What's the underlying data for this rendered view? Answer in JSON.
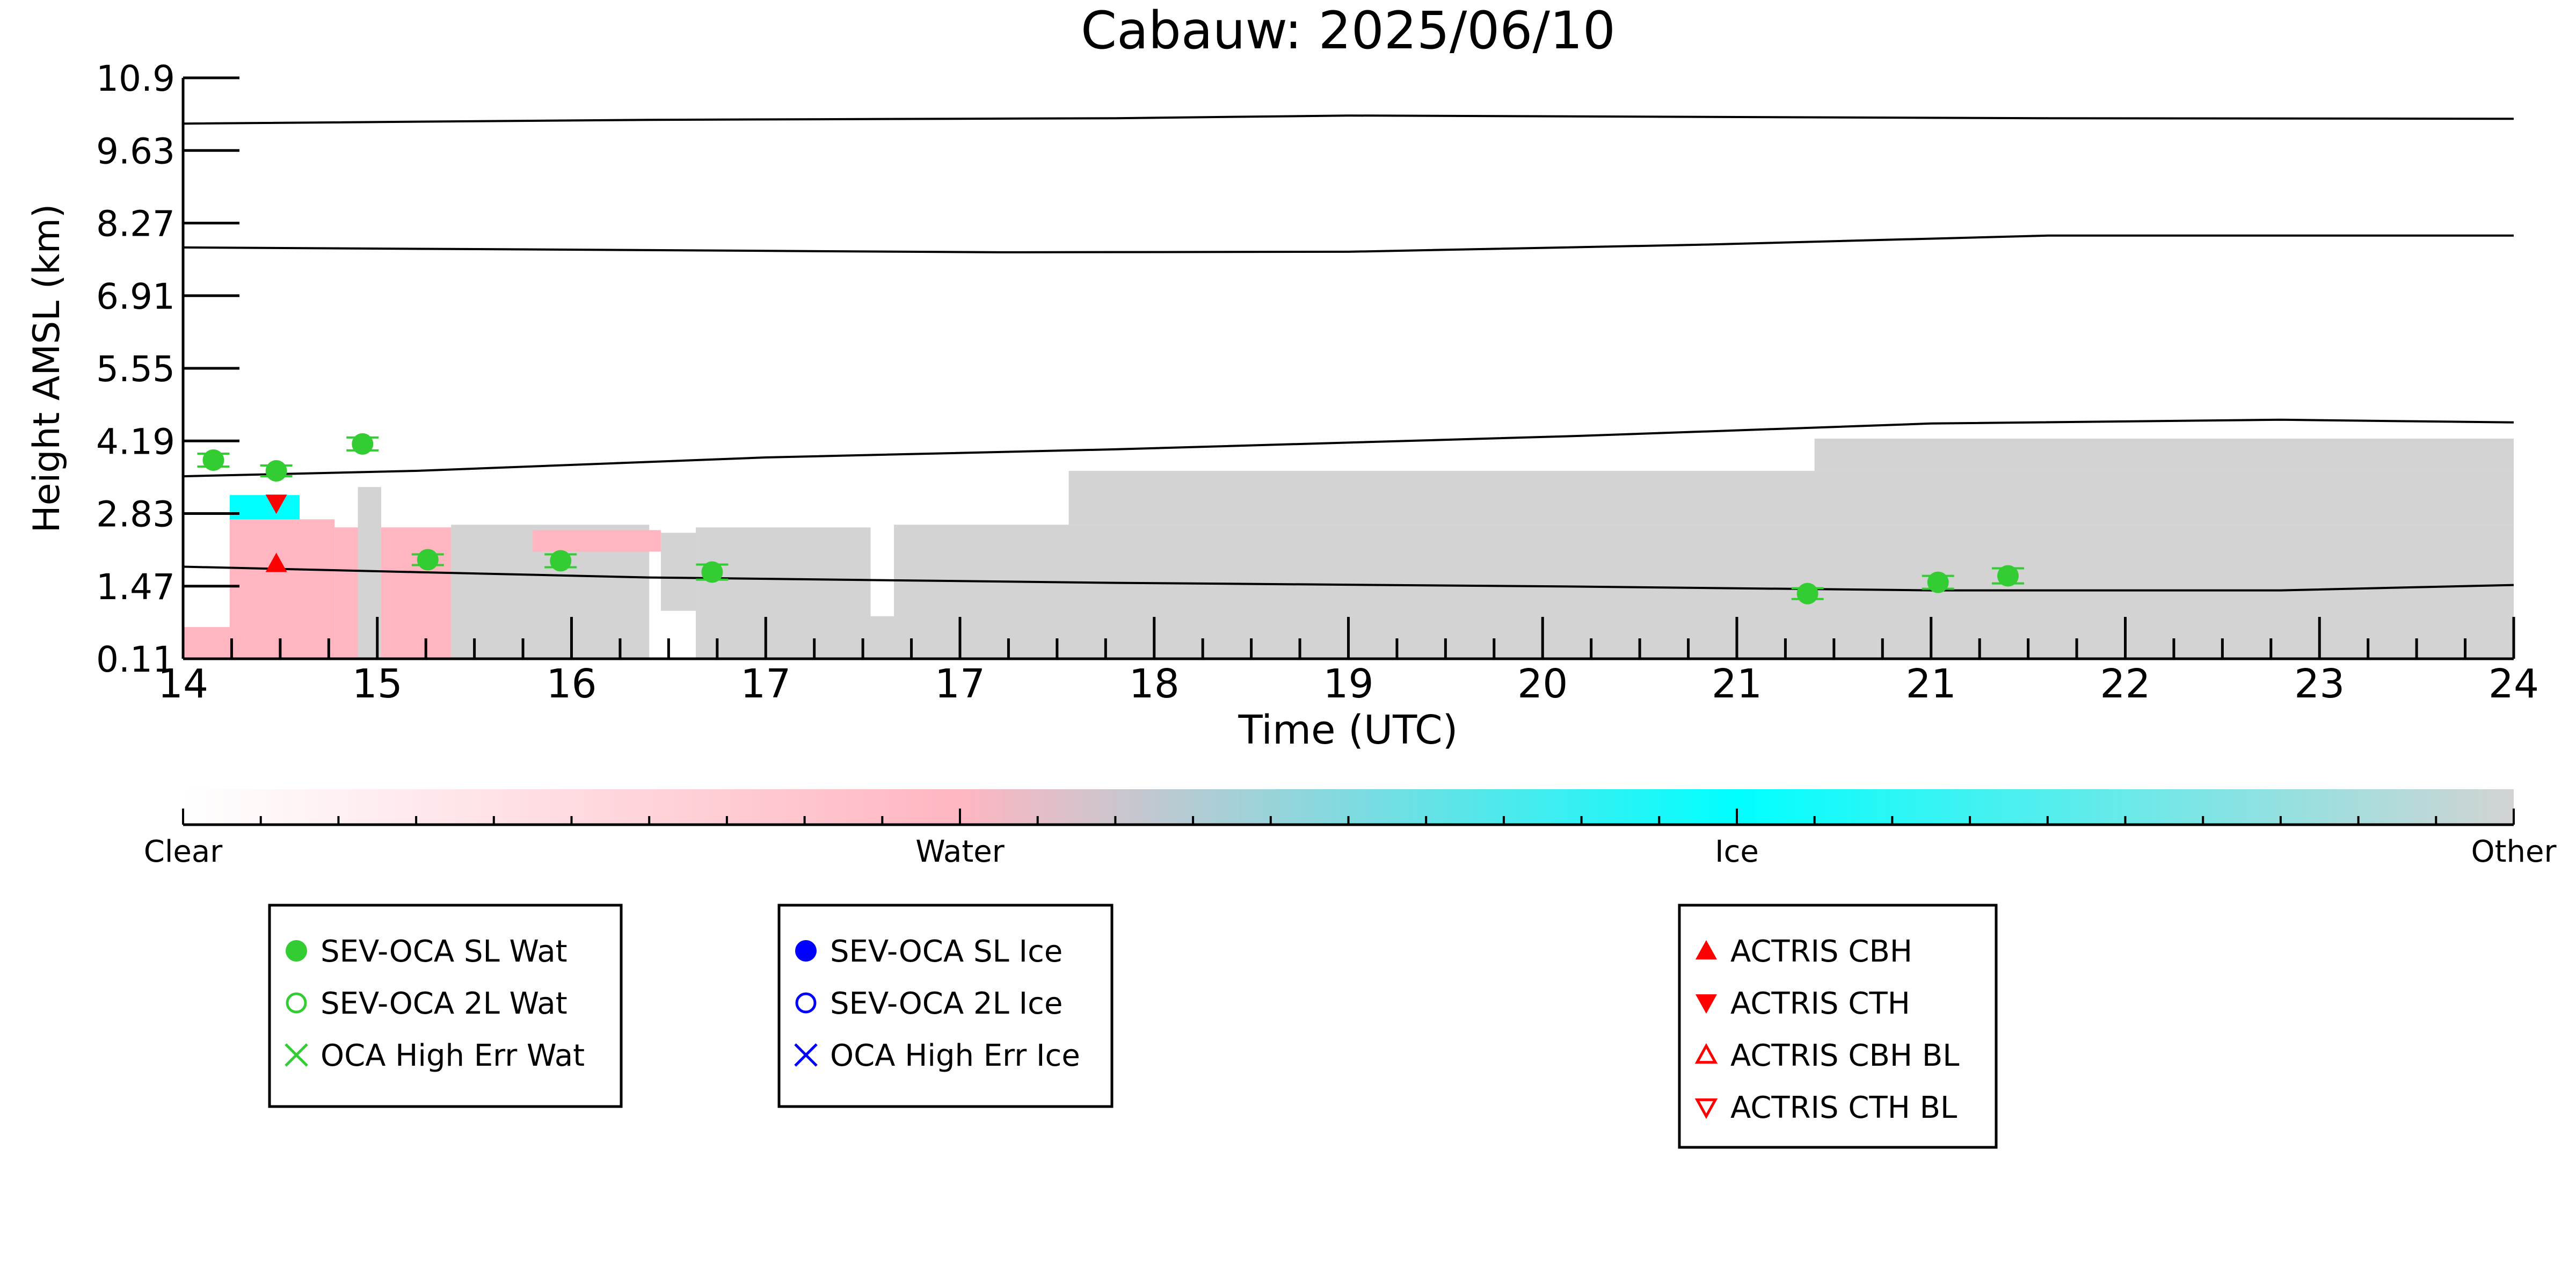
{
  "colors": {
    "clear": "#ffffff",
    "water": "#ffb6c1",
    "ice": "#00ffff",
    "other": "#d3d3d3",
    "oca_water": "#33cc33",
    "oca_ice": "#0000ff",
    "actris": "#ff0000",
    "line": "#000000"
  },
  "chart_data": {
    "type": "scatter",
    "title": "Cabauw: 2025/06/10",
    "xlabel": "Time (UTC)",
    "ylabel": "Height AMSL (km)",
    "x_tick_labels": [
      "14",
      "15",
      "16",
      "17",
      "17",
      "18",
      "19",
      "20",
      "21",
      "21",
      "22",
      "23",
      "24"
    ],
    "y_tick_labels": [
      "0.11",
      "1.47",
      "2.83",
      "4.19",
      "5.55",
      "6.91",
      "8.27",
      "9.63",
      "10.9"
    ],
    "xlim": [
      14,
      24
    ],
    "ylim": [
      0.11,
      10.9
    ],
    "grid": false,
    "background_mask": {
      "description_categories": [
        "Clear",
        "Water",
        "Ice",
        "Other"
      ],
      "segments": [
        {
          "category": "Water",
          "x0": 14.0,
          "x1": 14.2,
          "y0": 0.11,
          "y1": 0.7
        },
        {
          "category": "Water",
          "x0": 14.2,
          "x1": 14.65,
          "y0": 0.11,
          "y1": 2.7
        },
        {
          "category": "Ice",
          "x0": 14.2,
          "x1": 14.5,
          "y0": 2.7,
          "y1": 3.15
        },
        {
          "category": "Water",
          "x0": 14.65,
          "x1": 15.3,
          "y0": 0.11,
          "y1": 2.55
        },
        {
          "category": "Other",
          "x0": 14.75,
          "x1": 14.85,
          "y0": 0.11,
          "y1": 3.3
        },
        {
          "category": "Other",
          "x0": 15.15,
          "x1": 16.0,
          "y0": 0.11,
          "y1": 2.6
        },
        {
          "category": "Water",
          "x0": 15.5,
          "x1": 16.05,
          "y0": 2.1,
          "y1": 2.5
        },
        {
          "category": "Other",
          "x0": 16.05,
          "x1": 16.2,
          "y0": 1.0,
          "y1": 2.45
        },
        {
          "category": "Other",
          "x0": 16.2,
          "x1": 16.95,
          "y0": 0.11,
          "y1": 2.55
        },
        {
          "category": "Other",
          "x0": 16.9,
          "x1": 17.05,
          "y0": 0.11,
          "y1": 0.9
        },
        {
          "category": "Other",
          "x0": 17.05,
          "x1": 24.0,
          "y0": 0.11,
          "y1": 2.6
        },
        {
          "category": "Other",
          "x0": 17.8,
          "x1": 24.0,
          "y0": 2.6,
          "y1": 3.6
        },
        {
          "category": "Other",
          "x0": 21.0,
          "x1": 24.0,
          "y0": 3.6,
          "y1": 4.2
        }
      ]
    },
    "series": [
      {
        "name": "SEV-OCA SL Wat",
        "points": [
          {
            "x": 14.13,
            "y": 3.8,
            "err": 0.12
          },
          {
            "x": 14.4,
            "y": 3.6,
            "err": 0.1
          },
          {
            "x": 14.77,
            "y": 4.1,
            "err": 0.12
          },
          {
            "x": 15.05,
            "y": 1.95,
            "err": 0.1
          },
          {
            "x": 15.62,
            "y": 1.93,
            "err": 0.12
          },
          {
            "x": 16.27,
            "y": 1.72,
            "err": 0.14
          },
          {
            "x": 20.97,
            "y": 1.32,
            "err": 0.1
          },
          {
            "x": 21.53,
            "y": 1.53,
            "err": 0.12
          },
          {
            "x": 21.83,
            "y": 1.65,
            "err": 0.14
          }
        ]
      },
      {
        "name": "SEV-OCA 2L Wat",
        "points": []
      },
      {
        "name": "OCA High Err Wat",
        "points": []
      },
      {
        "name": "SEV-OCA SL Ice",
        "points": []
      },
      {
        "name": "SEV-OCA 2L Ice",
        "points": []
      },
      {
        "name": "OCA High Err Ice",
        "points": []
      },
      {
        "name": "ACTRIS CBH",
        "points": [
          {
            "x": 14.4,
            "y": 1.88
          }
        ]
      },
      {
        "name": "ACTRIS CTH",
        "points": [
          {
            "x": 14.4,
            "y": 3.0
          }
        ]
      },
      {
        "name": "ACTRIS CBH BL",
        "points": []
      },
      {
        "name": "ACTRIS CTH BL",
        "points": []
      }
    ],
    "lines": [
      {
        "points": [
          [
            14.0,
            10.05
          ],
          [
            16.0,
            10.12
          ],
          [
            18.0,
            10.15
          ],
          [
            19.0,
            10.2
          ],
          [
            22.0,
            10.15
          ],
          [
            24.0,
            10.14
          ]
        ]
      },
      {
        "points": [
          [
            14.0,
            7.75
          ],
          [
            16.0,
            7.7
          ],
          [
            17.5,
            7.66
          ],
          [
            19.0,
            7.67
          ],
          [
            20.5,
            7.8
          ],
          [
            22.0,
            7.97
          ],
          [
            24.0,
            7.97
          ]
        ]
      },
      {
        "points": [
          [
            14.0,
            3.5
          ],
          [
            15.0,
            3.6
          ],
          [
            16.5,
            3.85
          ],
          [
            18.0,
            4.0
          ],
          [
            20.0,
            4.25
          ],
          [
            21.5,
            4.48
          ],
          [
            23.0,
            4.55
          ],
          [
            24.0,
            4.5
          ]
        ]
      },
      {
        "points": [
          [
            14.0,
            1.82
          ],
          [
            15.0,
            1.72
          ],
          [
            16.0,
            1.62
          ],
          [
            18.0,
            1.52
          ],
          [
            20.0,
            1.45
          ],
          [
            21.5,
            1.38
          ],
          [
            23.0,
            1.38
          ],
          [
            24.0,
            1.48
          ]
        ]
      }
    ],
    "colorbar": {
      "labels": [
        "Clear",
        "Water",
        "Ice",
        "Other"
      ],
      "colors": [
        "#ffffff",
        "#ffb6c1",
        "#00ffff",
        "#d3d3d3"
      ]
    },
    "legends": [
      {
        "entries": [
          {
            "label": "SEV-OCA SL Wat",
            "marker": "filled-circle",
            "color": "#33cc33"
          },
          {
            "label": "SEV-OCA 2L Wat",
            "marker": "open-circle",
            "color": "#33cc33"
          },
          {
            "label": "OCA High Err Wat",
            "marker": "x",
            "color": "#33cc33"
          }
        ]
      },
      {
        "entries": [
          {
            "label": "SEV-OCA SL Ice",
            "marker": "filled-circle",
            "color": "#0000ff"
          },
          {
            "label": "SEV-OCA 2L Ice",
            "marker": "open-circle",
            "color": "#0000ff"
          },
          {
            "label": "OCA High Err Ice",
            "marker": "x",
            "color": "#0000ff"
          }
        ]
      },
      {
        "entries": [
          {
            "label": "ACTRIS CBH",
            "marker": "filled-triangle-up",
            "color": "#ff0000"
          },
          {
            "label": "ACTRIS CTH",
            "marker": "filled-triangle-down",
            "color": "#ff0000"
          },
          {
            "label": "ACTRIS CBH BL",
            "marker": "open-triangle-up",
            "color": "#ff0000"
          },
          {
            "label": "ACTRIS CTH BL",
            "marker": "open-triangle-down",
            "color": "#ff0000"
          }
        ]
      }
    ]
  }
}
